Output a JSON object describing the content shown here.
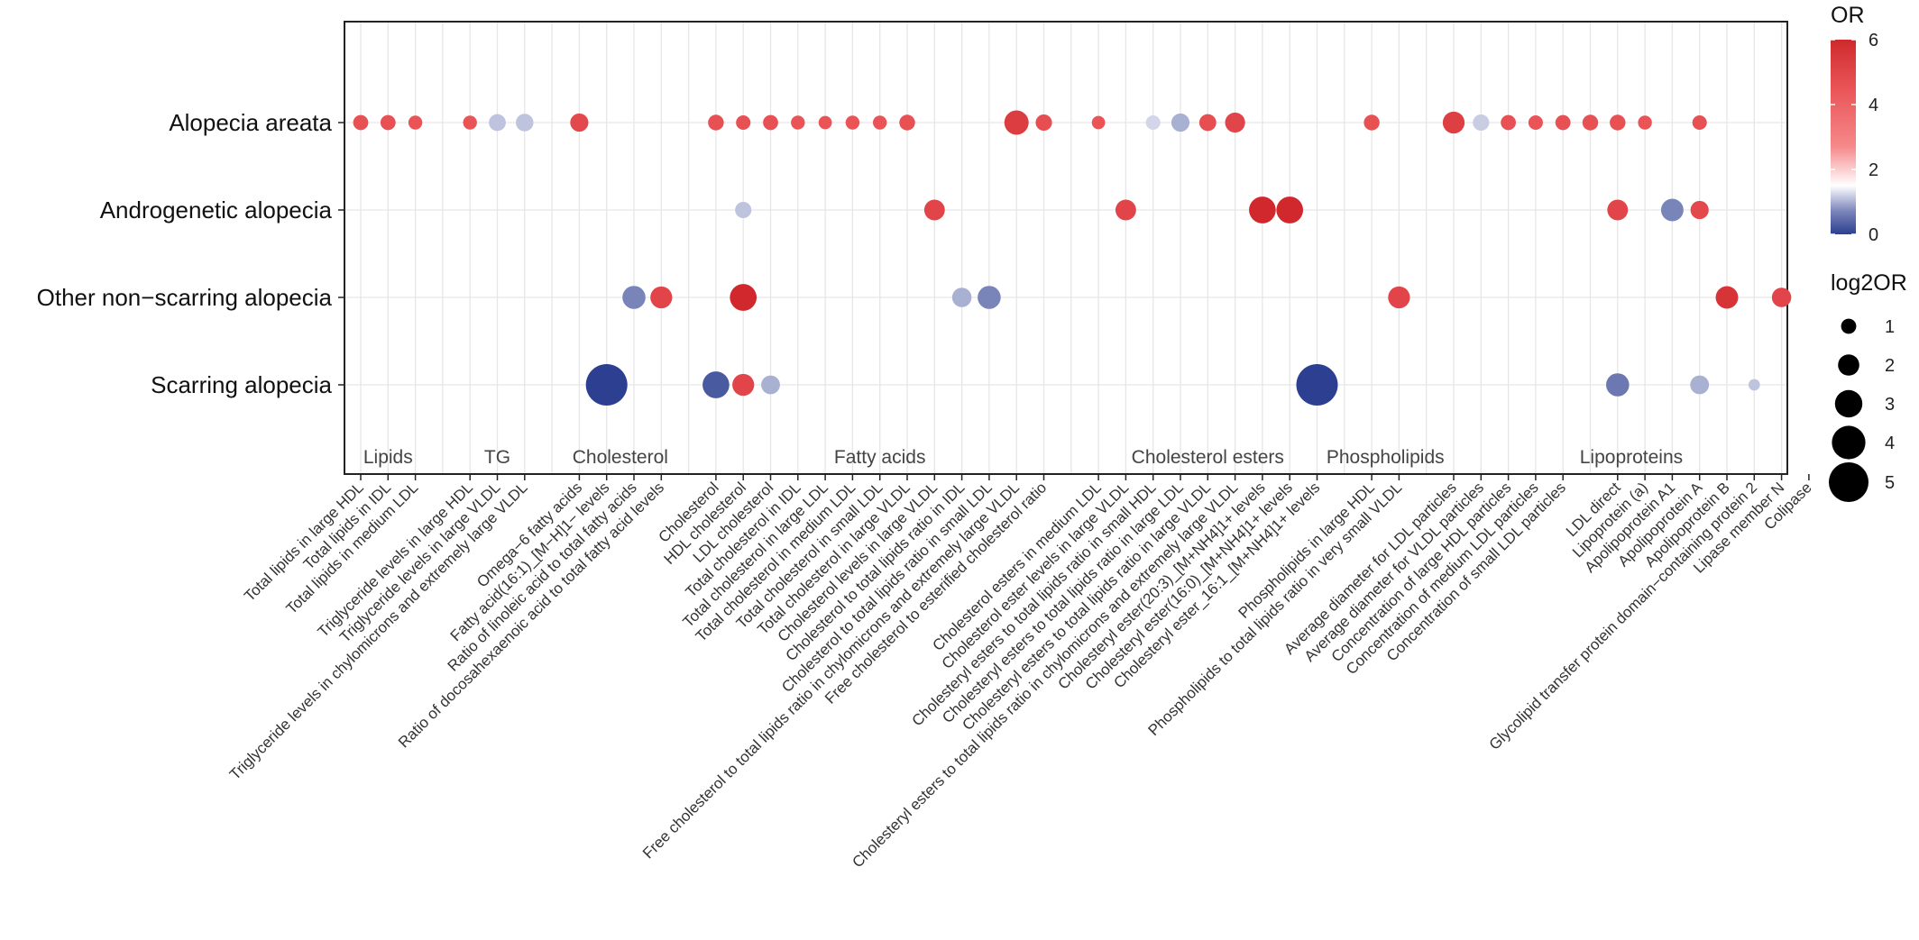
{
  "chart_data": {
    "type": "scatter",
    "subtype": "dot-plot",
    "title": "",
    "xlabel": "",
    "ylabel": "",
    "rows": [
      "Alopecia areata",
      "Androgenetic alopecia",
      "Other non−scarring alopecia",
      "Scarring alopecia"
    ],
    "x_categories": [
      "Total lipids in large HDL",
      "Total lipids in IDL",
      "Total lipids in medium LDL",
      "Triglyceride levels in large HDL",
      "Triglyceride levels in large VLDL",
      "Triglyceride levels in chylomicrons and extremely large VLDL",
      "Omega−6 fatty acids",
      "Fatty acid(16:1)_[M−H]1− levels",
      "Ratio of linoleic acid to total fatty acids",
      "Ratio of docosahexaenoic acid to total fatty acid levels",
      "Cholesterol",
      "HDL cholesterol",
      "LDL cholesterol",
      "Total cholesterol in IDL",
      "Total cholesterol in large LDL",
      "Total cholesterol in medium LDL",
      "Total cholesterol in small LDL",
      "Total cholesterol in large VLDL",
      "Cholesterol levels in large VLDL",
      "Cholesterol to total lipids ratio in IDL",
      "Cholesterol to total lipids ratio in small LDL",
      "Free cholesterol to total lipids ratio in chylomicrons and extremely large VLDL",
      "Free cholesterol to esterified cholesterol ratio",
      "Cholesterol esters in medium LDL",
      "Cholesterol ester levels in large VLDL",
      "Cholesteryl esters to total lipids ratio in small HDL",
      "Cholesteryl esters to total lipids ratio in large LDL",
      "Cholesteryl esters to total lipids ratio in large VLDL",
      "Cholesteryl esters to total lipids ratio in chylomicrons and extremely large VLDL",
      "Cholesteryl ester(20:3)_[M+NH4]1+ levels",
      "Cholesteryl ester(16:0)_[M+NH4]1+ levels",
      "Cholesteryl ester_16:1_[M+NH4]1+ levels",
      "Phospholipids in large HDL",
      "Phospholipids to total lipids ratio in very small VLDL",
      "Average diameter for LDL particles",
      "Average diameter for VLDL particles",
      "Concentration of large HDL particles",
      "Concentration of medium LDL particles",
      "Concentration of small LDL particles",
      "LDL direct",
      "Lipoprotein (a)",
      "Apolipoprotein A1",
      "Apolipoprotein A",
      "Apolipoprotein B",
      "Glycolipid transfer protein domain−containing protein 2",
      "Lipase member N",
      "Colipase"
    ],
    "groups": [
      {
        "name": "Lipids",
        "start": 0,
        "end": 2
      },
      {
        "name": "TG",
        "start": 3,
        "end": 5
      },
      {
        "name": "Cholesterol",
        "start": 6,
        "end": 9
      },
      {
        "name": "Fatty acids",
        "start": 10,
        "end": 22
      },
      {
        "name": "Cholesterol esters",
        "start": 23,
        "end": 31
      },
      {
        "name": "Phospholipids",
        "start": 32,
        "end": 33
      },
      {
        "name": "Lipoproteins",
        "start": 34,
        "end": 46
      }
    ],
    "points": [
      {
        "row": 0,
        "x": 0,
        "or": 4.6,
        "log2or": 0.7
      },
      {
        "row": 0,
        "x": 1,
        "or": 4.6,
        "log2or": 0.7
      },
      {
        "row": 0,
        "x": 2,
        "or": 4.5,
        "log2or": 0.5
      },
      {
        "row": 0,
        "x": 4,
        "or": 4.5,
        "log2or": 0.5
      },
      {
        "row": 0,
        "x": 5,
        "or": 1.0,
        "log2or": 1.0
      },
      {
        "row": 0,
        "x": 6,
        "or": 1.0,
        "log2or": 1.1
      },
      {
        "row": 0,
        "x": 8,
        "or": 4.9,
        "log2or": 1.2
      },
      {
        "row": 0,
        "x": 13,
        "or": 4.6,
        "log2or": 0.8
      },
      {
        "row": 0,
        "x": 14,
        "or": 4.6,
        "log2or": 0.6
      },
      {
        "row": 0,
        "x": 15,
        "or": 4.6,
        "log2or": 0.7
      },
      {
        "row": 0,
        "x": 16,
        "or": 4.5,
        "log2or": 0.5
      },
      {
        "row": 0,
        "x": 17,
        "or": 4.5,
        "log2or": 0.4
      },
      {
        "row": 0,
        "x": 18,
        "or": 4.5,
        "log2or": 0.5
      },
      {
        "row": 0,
        "x": 19,
        "or": 4.5,
        "log2or": 0.5
      },
      {
        "row": 0,
        "x": 20,
        "or": 4.6,
        "log2or": 0.8
      },
      {
        "row": 0,
        "x": 24,
        "or": 5.3,
        "log2or": 2.2
      },
      {
        "row": 0,
        "x": 25,
        "or": 4.7,
        "log2or": 0.9
      },
      {
        "row": 0,
        "x": 27,
        "or": 4.5,
        "log2or": 0.4
      },
      {
        "row": 0,
        "x": 29,
        "or": 1.2,
        "log2or": 0.6
      },
      {
        "row": 0,
        "x": 30,
        "or": 0.8,
        "log2or": 1.2
      },
      {
        "row": 0,
        "x": 31,
        "or": 4.7,
        "log2or": 1.0
      },
      {
        "row": 0,
        "x": 32,
        "or": 5.0,
        "log2or": 1.5
      },
      {
        "row": 0,
        "x": 37,
        "or": 4.6,
        "log2or": 0.8
      },
      {
        "row": 0,
        "x": 40,
        "or": 5.2,
        "log2or": 1.8
      },
      {
        "row": 0,
        "x": 41,
        "or": 1.1,
        "log2or": 0.9
      },
      {
        "row": 0,
        "x": 42,
        "or": 4.6,
        "log2or": 0.7
      },
      {
        "row": 0,
        "x": 43,
        "or": 4.5,
        "log2or": 0.6
      },
      {
        "row": 0,
        "x": 44,
        "or": 4.6,
        "log2or": 0.7
      },
      {
        "row": 0,
        "x": 45,
        "or": 4.6,
        "log2or": 0.8
      },
      {
        "row": 0,
        "x": 46,
        "or": 4.6,
        "log2or": 0.8
      },
      {
        "row": 0,
        "x": 47,
        "or": 4.5,
        "log2or": 0.5
      },
      {
        "row": 0,
        "x": 49,
        "or": 4.6,
        "log2or": 0.6
      },
      {
        "row": 1,
        "x": 14,
        "or": 1.0,
        "log2or": 0.9
      },
      {
        "row": 1,
        "x": 21,
        "or": 5.0,
        "log2or": 1.6
      },
      {
        "row": 1,
        "x": 28,
        "or": 5.0,
        "log2or": 1.6
      },
      {
        "row": 1,
        "x": 33,
        "or": 6.3,
        "log2or": 2.6
      },
      {
        "row": 1,
        "x": 34,
        "or": 6.3,
        "log2or": 2.6
      },
      {
        "row": 1,
        "x": 46,
        "or": 5.0,
        "log2or": 1.6
      },
      {
        "row": 1,
        "x": 48,
        "or": 0.4,
        "log2or": 1.9
      },
      {
        "row": 1,
        "x": 49,
        "or": 4.9,
        "log2or": 1.2
      },
      {
        "row": 2,
        "x": 10,
        "or": 0.4,
        "log2or": 2.0
      },
      {
        "row": 2,
        "x": 11,
        "or": 5.0,
        "log2or": 1.8
      },
      {
        "row": 2,
        "x": 14,
        "or": 6.3,
        "log2or": 2.6
      },
      {
        "row": 2,
        "x": 22,
        "or": 0.8,
        "log2or": 1.4
      },
      {
        "row": 2,
        "x": 23,
        "or": 0.4,
        "log2or": 2.0
      },
      {
        "row": 2,
        "x": 38,
        "or": 5.0,
        "log2or": 1.8
      },
      {
        "row": 2,
        "x": 50,
        "or": 5.6,
        "log2or": 1.9
      },
      {
        "row": 2,
        "x": 52,
        "or": 5.0,
        "log2or": 1.4
      },
      {
        "row": 3,
        "x": 9,
        "or": 0.0,
        "log2or": 5.0
      },
      {
        "row": 3,
        "x": 13,
        "or": 0.1,
        "log2or": 2.6
      },
      {
        "row": 3,
        "x": 14,
        "or": 5.0,
        "log2or": 1.8
      },
      {
        "row": 3,
        "x": 15,
        "or": 0.8,
        "log2or": 1.3
      },
      {
        "row": 3,
        "x": 35,
        "or": 0.0,
        "log2or": 5.0
      },
      {
        "row": 3,
        "x": 46,
        "or": 0.3,
        "log2or": 2.0
      },
      {
        "row": 3,
        "x": 49,
        "or": 0.8,
        "log2or": 1.3
      },
      {
        "row": 3,
        "x": 51,
        "or": 1.0,
        "log2or": 0.1
      }
    ],
    "color_legend": {
      "title": "OR",
      "min": 0,
      "max": 6,
      "ticks": [
        0,
        2,
        4,
        6
      ],
      "low_color": "#2c3f91",
      "mid_color": "#ffffff",
      "mid_value": 1.5,
      "high_color": "#d0282c"
    },
    "size_legend": {
      "title": "log2OR",
      "values": [
        1,
        2,
        3,
        4,
        5
      ]
    },
    "grid": true
  }
}
